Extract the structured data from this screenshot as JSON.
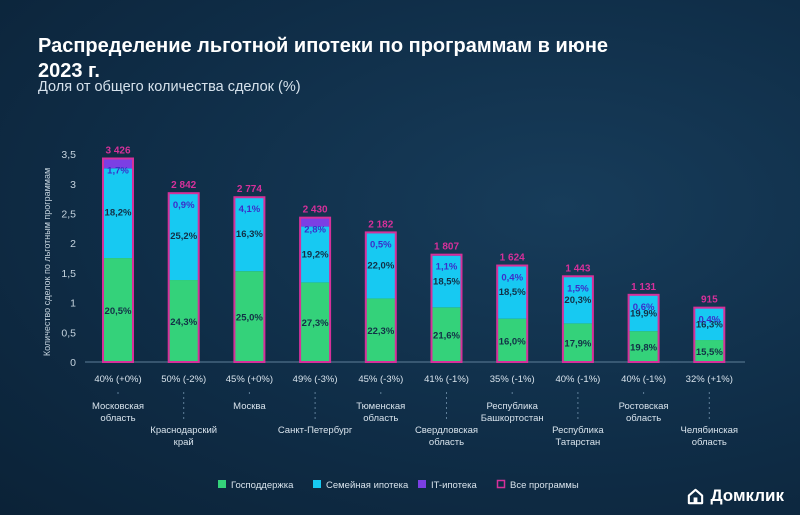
{
  "chart_data": {
    "type": "bar",
    "stacked": true,
    "title": "Распределение льготной ипотеки по программам в июне 2023 г.",
    "subtitle": "Доля от общего количества сделок (%)",
    "ylabel": "Количество сделок по льготным программам",
    "yticks": [
      "0",
      "0,5",
      "1",
      "1,5",
      "2",
      "2,5",
      "3",
      "3,5"
    ],
    "ylim": [
      0,
      3.5
    ],
    "categories": [
      [
        "Московская",
        "область"
      ],
      [
        "Краснодарский",
        "край"
      ],
      [
        "Москва"
      ],
      [
        "Санкт-Петербург"
      ],
      [
        "Тюменская",
        "область"
      ],
      [
        "Свердловская",
        "область"
      ],
      [
        "Республика",
        "Башкортостан"
      ],
      [
        "Республика",
        "Татарстан"
      ],
      [
        "Ростовская",
        "область"
      ],
      [
        "Челябинская",
        "область"
      ]
    ],
    "totals": [
      3.426,
      2.842,
      2.774,
      2.43,
      2.182,
      1.807,
      1.624,
      1.443,
      1.131,
      0.915
    ],
    "total_labels": [
      "3 426",
      "2 842",
      "2 774",
      "2 430",
      "2 182",
      "1 807",
      "1 624",
      "1 443",
      "1 131",
      "915"
    ],
    "shares": [
      "40% (+0%)",
      "50% (-2%)",
      "45% (+0%)",
      "49% (-3%)",
      "45% (-3%)",
      "41% (-1%)",
      "35% (-1%)",
      "40% (-1%)",
      "40% (-1%)",
      "32% (+1%)"
    ],
    "series": [
      {
        "name": "Господдержка",
        "color": "#34d27a",
        "tops": [
          1.75,
          1.38,
          1.53,
          1.34,
          1.07,
          0.92,
          0.73,
          0.65,
          0.52,
          0.37
        ],
        "labels": [
          "20,5%",
          "24,3%",
          "25,0%",
          "27,3%",
          "22,3%",
          "21,6%",
          "16,0%",
          "17,9%",
          "19,8%",
          "15,5%"
        ]
      },
      {
        "name": "Семейная ипотека",
        "color": "#17c9f2",
        "tops": [
          3.26,
          2.83,
          2.77,
          2.28,
          2.17,
          1.79,
          1.62,
          1.44,
          1.13,
          0.91
        ],
        "labels": [
          "18,2%",
          "25,2%",
          "16,3%",
          "19,2%",
          "22,0%",
          "18,5%",
          "18,5%",
          "20,3%",
          "19,9%",
          "16,3%"
        ]
      },
      {
        "name": "IT-ипотека",
        "color": "#7b3fe4",
        "tops": [
          3.426,
          2.842,
          2.774,
          2.43,
          2.182,
          1.807,
          1.624,
          1.443,
          1.131,
          0.915
        ],
        "labels": [
          "1,7%",
          "0,9%",
          "4,1%",
          "2,8%",
          "0,5%",
          "1,1%",
          "0,4%",
          "1,5%",
          "0,6%",
          "0,4%"
        ]
      }
    ],
    "legend": [
      {
        "name": "Господдержка",
        "color": "#34d27a",
        "style": "fill"
      },
      {
        "name": "Семейная ипотека",
        "color": "#17c9f2",
        "style": "fill"
      },
      {
        "name": "IT-ипотека",
        "color": "#7b3fe4",
        "style": "fill"
      },
      {
        "name": "Все программы",
        "color": "#d6309a",
        "style": "outline"
      }
    ],
    "legend_position": "bottom",
    "total_color": "#d6309a",
    "grid": false
  },
  "brand": {
    "name": "Домклик",
    "icon": "house-icon"
  }
}
